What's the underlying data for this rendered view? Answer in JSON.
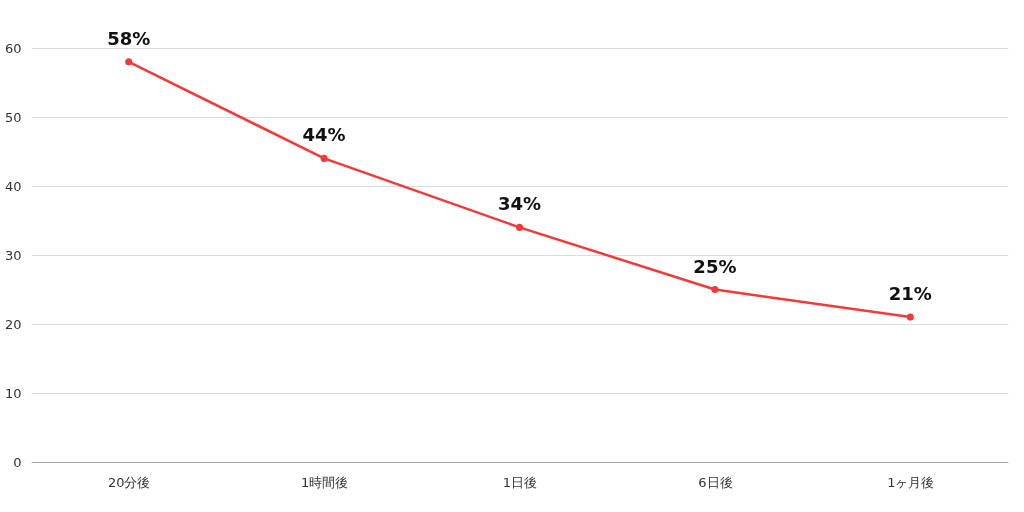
{
  "chart_data": {
    "type": "line",
    "categories": [
      "20分後",
      "1時間後",
      "1日後",
      "6日後",
      "1ヶ月後"
    ],
    "values": [
      58,
      44,
      34,
      25,
      21
    ],
    "value_labels": [
      "58%",
      "44%",
      "34%",
      "25%",
      "21%"
    ],
    "color": "#f23a3a",
    "marker": "circle",
    "line_style": "solid",
    "ylim": [
      0,
      60
    ],
    "yticks": [
      0,
      10,
      20,
      30,
      40,
      50,
      60
    ],
    "grid": "y"
  }
}
